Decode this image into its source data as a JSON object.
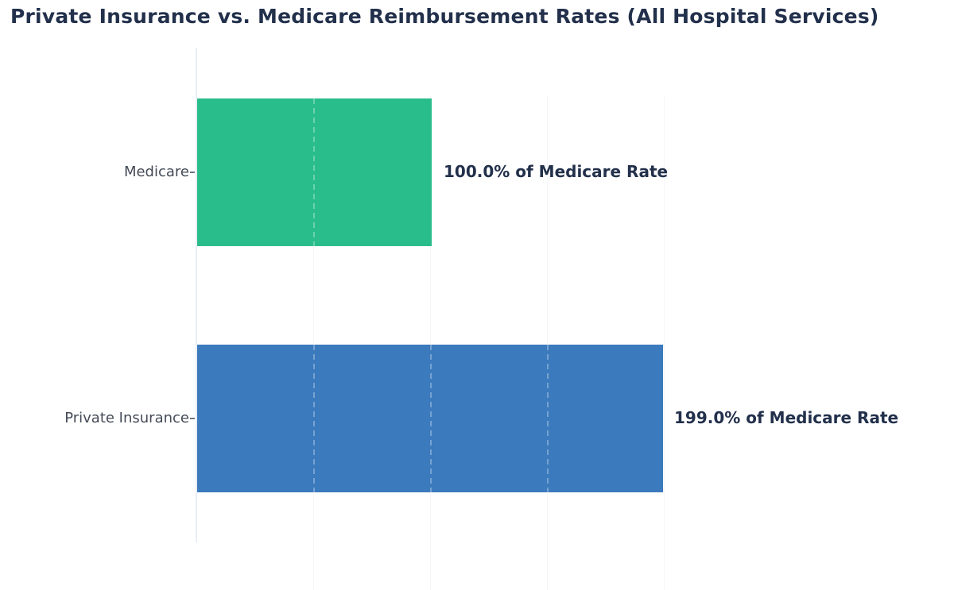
{
  "chart_data": {
    "type": "bar",
    "orientation": "horizontal",
    "title": "Private Insurance vs. Medicare Reimbursement Rates (All Hospital Services)",
    "categories": [
      "Medicare",
      "Private Insurance"
    ],
    "values": [
      100.0,
      199.0
    ],
    "unit": "% of Medicare Rate",
    "bars": [
      {
        "category": "Medicare",
        "value": 100.0,
        "annotation": "100.0% of Medicare Rate",
        "color": "#2abd8c"
      },
      {
        "category": "Private Insurance",
        "value": 199.0,
        "annotation": "199.0% of Medicare Rate",
        "color": "#3b7abd"
      }
    ],
    "xlabel": "",
    "ylabel": "",
    "xlim": [
      0,
      318
    ],
    "x_gridlines_pct": [
      50,
      100,
      150,
      200
    ],
    "grid": "vertical-dashed-faint",
    "legend": "none",
    "colors": {
      "title_text": "#22304b",
      "annotation_text": "#22304b",
      "tick_label_text": "#444b57",
      "axis_line": "#e9edf3",
      "background": "#ffffff"
    }
  }
}
